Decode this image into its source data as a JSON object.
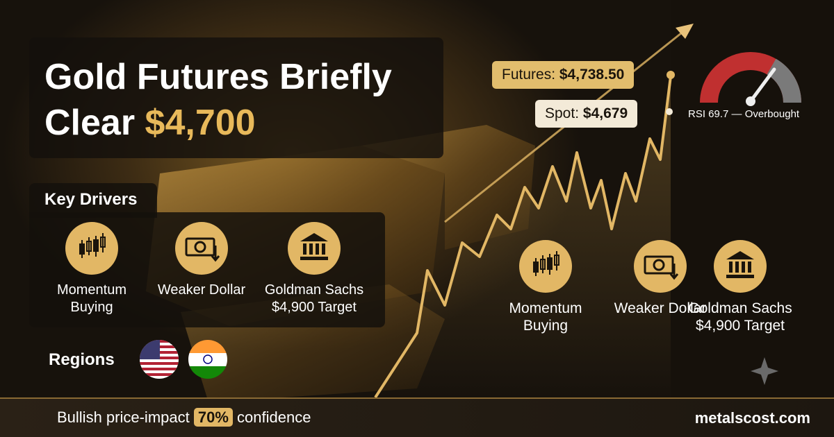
{
  "header": {
    "title": "Gold Futures Briefly Clear",
    "title_highlight": "$4,700"
  },
  "drivers": {
    "heading": "Key Drivers",
    "items": [
      "Momentum Buying",
      "Weaker Dollar",
      "Goldman Sachs $4,900 Target"
    ]
  },
  "regions": {
    "heading": "Regions"
  },
  "prices": {
    "futures_label": "Futures:",
    "futures_value": "$4,738.50",
    "spot_label": "Spot:",
    "spot_value": "$4,679"
  },
  "rsi": {
    "label": "RSI 69.7 — Overbought"
  },
  "footer": {
    "sentiment": "Bullish price-impact",
    "confidence": "70%",
    "confidence_suffix": "confidence",
    "site": "metalscost.com"
  }
}
